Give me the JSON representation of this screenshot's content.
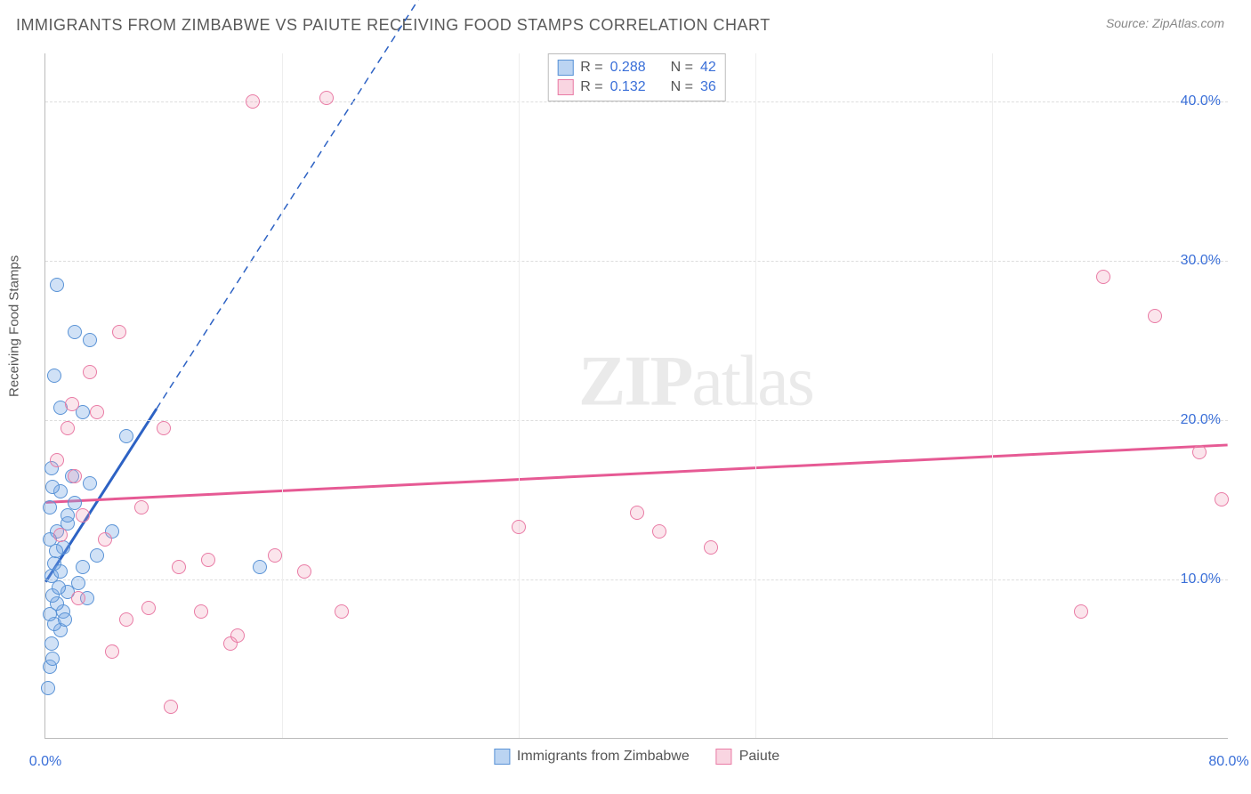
{
  "title": "IMMIGRANTS FROM ZIMBABWE VS PAIUTE RECEIVING FOOD STAMPS CORRELATION CHART",
  "source": "Source: ZipAtlas.com",
  "y_axis_title": "Receiving Food Stamps",
  "watermark_bold": "ZIP",
  "watermark_rest": "atlas",
  "chart": {
    "type": "scatter",
    "xlim": [
      0,
      80
    ],
    "ylim": [
      0,
      43
    ],
    "x_ticks": [
      {
        "v": 0,
        "l": "0.0%"
      },
      {
        "v": 80,
        "l": "80.0%"
      }
    ],
    "y_ticks": [
      {
        "v": 10,
        "l": "10.0%"
      },
      {
        "v": 20,
        "l": "20.0%"
      },
      {
        "v": 30,
        "l": "30.0%"
      },
      {
        "v": 40,
        "l": "40.0%"
      }
    ],
    "x_grid_major_every": 16,
    "background_color": "#ffffff",
    "grid_color": "#dddddd",
    "series": [
      {
        "name": "Immigrants from Zimbabwe",
        "color_fill": "rgba(120,170,230,0.35)",
        "color_stroke": "#5a93d6",
        "marker_size": 16,
        "trend": {
          "slope": 1.45,
          "intercept": 9.8,
          "solid_until_x": 7.5,
          "color": "#2d62c4",
          "width": 3
        },
        "R": "0.288",
        "N": "42",
        "points": [
          [
            0.2,
            3.2
          ],
          [
            0.3,
            4.5
          ],
          [
            0.5,
            5.0
          ],
          [
            0.4,
            6.0
          ],
          [
            1.0,
            6.8
          ],
          [
            0.6,
            7.2
          ],
          [
            0.3,
            7.8
          ],
          [
            1.2,
            8.0
          ],
          [
            0.8,
            8.5
          ],
          [
            0.5,
            9.0
          ],
          [
            1.5,
            9.2
          ],
          [
            2.2,
            9.8
          ],
          [
            0.4,
            10.2
          ],
          [
            1.0,
            10.5
          ],
          [
            0.6,
            11.0
          ],
          [
            2.5,
            10.8
          ],
          [
            1.2,
            12.0
          ],
          [
            3.5,
            11.5
          ],
          [
            0.8,
            13.0
          ],
          [
            4.5,
            13.0
          ],
          [
            1.5,
            13.5
          ],
          [
            0.3,
            14.5
          ],
          [
            2.0,
            14.8
          ],
          [
            1.0,
            15.5
          ],
          [
            0.5,
            15.8
          ],
          [
            3.0,
            16.0
          ],
          [
            1.8,
            16.5
          ],
          [
            0.4,
            17.0
          ],
          [
            5.5,
            19.0
          ],
          [
            2.5,
            20.5
          ],
          [
            1.0,
            20.8
          ],
          [
            0.6,
            22.8
          ],
          [
            14.5,
            10.8
          ],
          [
            3.0,
            25.0
          ],
          [
            2.0,
            25.5
          ],
          [
            0.8,
            28.5
          ],
          [
            1.5,
            14.0
          ],
          [
            0.3,
            12.5
          ],
          [
            2.8,
            8.8
          ],
          [
            1.3,
            7.5
          ],
          [
            0.9,
            9.5
          ],
          [
            0.7,
            11.8
          ]
        ]
      },
      {
        "name": "Paiute",
        "color_fill": "rgba(240,150,180,0.25)",
        "color_stroke": "#e97ba5",
        "marker_size": 16,
        "trend": {
          "slope": 0.045,
          "intercept": 14.8,
          "solid_until_x": 80,
          "color": "#e65a94",
          "width": 3
        },
        "R": "0.132",
        "N": "36",
        "points": [
          [
            1.5,
            19.5
          ],
          [
            2.0,
            16.5
          ],
          [
            3.0,
            23.0
          ],
          [
            2.5,
            14.0
          ],
          [
            4.0,
            12.5
          ],
          [
            5.5,
            7.5
          ],
          [
            7.0,
            8.2
          ],
          [
            8.5,
            2.0
          ],
          [
            9.0,
            10.8
          ],
          [
            10.5,
            8.0
          ],
          [
            11.0,
            11.2
          ],
          [
            12.5,
            6.0
          ],
          [
            14.0,
            40.0
          ],
          [
            8.0,
            19.5
          ],
          [
            19.0,
            40.2
          ],
          [
            17.5,
            10.5
          ],
          [
            20.0,
            8.0
          ],
          [
            5.0,
            25.5
          ],
          [
            32.0,
            13.3
          ],
          [
            40.0,
            14.2
          ],
          [
            41.5,
            13.0
          ],
          [
            45.0,
            12.0
          ],
          [
            70.0,
            8.0
          ],
          [
            71.5,
            29.0
          ],
          [
            75.0,
            26.5
          ],
          [
            78.0,
            18.0
          ],
          [
            79.5,
            15.0
          ],
          [
            3.5,
            20.5
          ],
          [
            6.5,
            14.5
          ],
          [
            1.0,
            12.8
          ],
          [
            2.2,
            8.8
          ],
          [
            4.5,
            5.5
          ],
          [
            0.8,
            17.5
          ],
          [
            1.8,
            21.0
          ],
          [
            13.0,
            6.5
          ],
          [
            15.5,
            11.5
          ]
        ]
      }
    ]
  },
  "legend_stats_label_R": "R =",
  "legend_stats_label_N": "N ="
}
